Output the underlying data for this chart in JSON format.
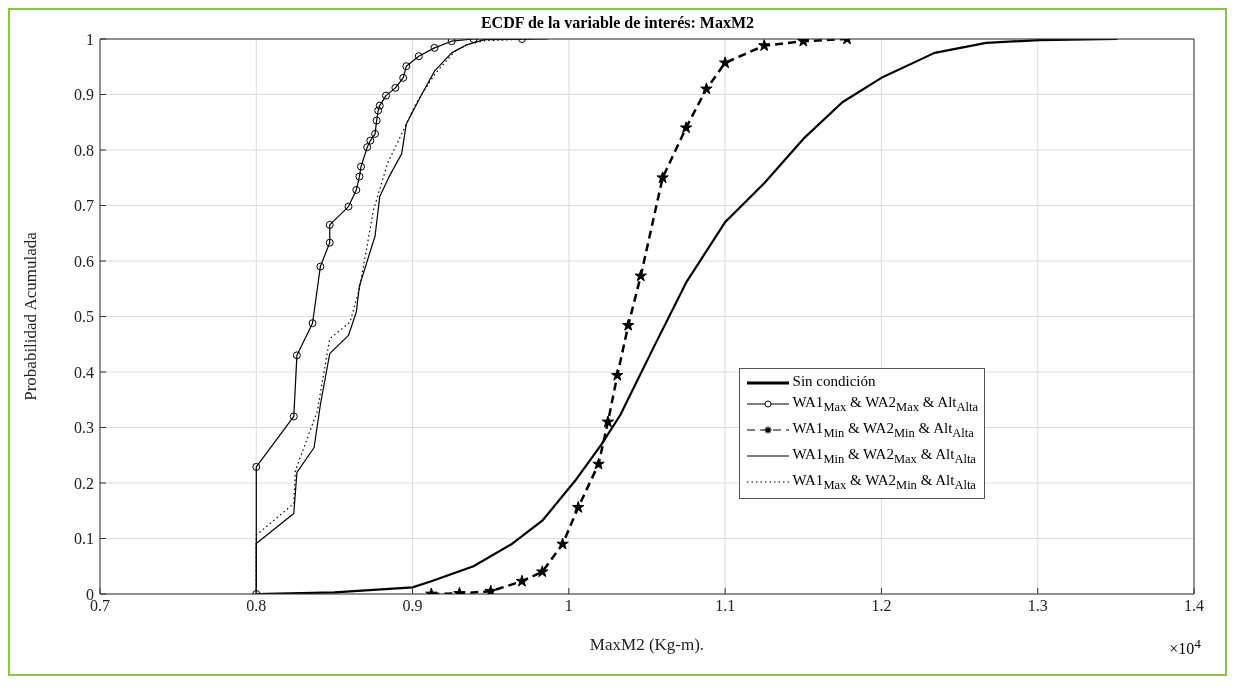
{
  "chart_data": {
    "type": "line",
    "title": "ECDF de la variable de interés: MaxM2",
    "xlabel": "MaxM2 (Kg-m).",
    "ylabel": "Probabilidad Acumulada",
    "annotations": [
      "×10$^{4}$"
    ],
    "xlim": [
      0.7,
      1.4
    ],
    "xticks": [
      0.7,
      0.8,
      0.9,
      1,
      1.1,
      1.2,
      1.3,
      1.4
    ],
    "ylim": [
      0,
      1
    ],
    "yticks": [
      0,
      0.1,
      0.2,
      0.3,
      0.4,
      0.5,
      0.6,
      0.7,
      0.8,
      0.9,
      1
    ],
    "grid": true,
    "legend": "right",
    "series": [
      {
        "name": "Sin condición",
        "color": "#000000",
        "marker": "none",
        "line_style": "solid",
        "x": [
          0.8,
          0.85,
          0.9,
          0.912,
          0.939,
          0.964,
          0.983,
          1.004,
          1.021,
          1.033,
          1.054,
          1.075,
          1.1,
          1.125,
          1.15,
          1.175,
          1.2,
          1.234,
          1.267,
          1.301,
          1.351
        ],
        "values": [
          0,
          0.003,
          0.012,
          0.023,
          0.05,
          0.091,
          0.132,
          0.204,
          0.27,
          0.323,
          0.443,
          0.561,
          0.67,
          0.74,
          0.82,
          0.886,
          0.93,
          0.975,
          0.993,
          0.998,
          1
        ]
      },
      {
        "name": "WA1$_{Max}$ & WA2$_{Max}$ & Alt$_{Alta}$",
        "color": "#000000",
        "marker": "circle",
        "line_style": "solid",
        "x": [
          0.8,
          0.8,
          0.824,
          0.826,
          0.836,
          0.841,
          0.847,
          0.847,
          0.859,
          0.864,
          0.866,
          0.867,
          0.871,
          0.873,
          0.876,
          0.877,
          0.878,
          0.879,
          0.883,
          0.889,
          0.894,
          0.896,
          0.904,
          0.914,
          0.925,
          0.939,
          0.97
        ],
        "values": [
          0,
          0.229,
          0.32,
          0.43,
          0.488,
          0.59,
          0.633,
          0.665,
          0.698,
          0.728,
          0.752,
          0.77,
          0.805,
          0.817,
          0.829,
          0.853,
          0.871,
          0.88,
          0.898,
          0.912,
          0.93,
          0.951,
          0.969,
          0.984,
          0.996,
          1,
          1
        ]
      },
      {
        "name": "WA1$_{Min}$ & WA2$_{Min}$ & Alt$_{Alta}$",
        "color": "#000000",
        "marker": "star",
        "line_style": "dashed",
        "x": [
          0.912,
          0.93,
          0.95,
          0.97,
          0.983,
          0.996,
          1.006,
          1.019,
          1.025,
          1.031,
          1.038,
          1.046,
          1.06,
          1.075,
          1.088,
          1.1,
          1.125,
          1.15,
          1.178
        ],
        "values": [
          0,
          0.001,
          0.005,
          0.023,
          0.04,
          0.09,
          0.156,
          0.234,
          0.31,
          0.394,
          0.484,
          0.573,
          0.75,
          0.84,
          0.91,
          0.957,
          0.988,
          0.996,
          1
        ]
      },
      {
        "name": "WA1$_{Min}$ & WA2$_{Max}$ & Alt$_{Alta}$",
        "color": "#000000",
        "marker": "none",
        "line_style": "solid",
        "x": [
          0.8,
          0.8,
          0.824,
          0.826,
          0.837,
          0.841,
          0.847,
          0.859,
          0.864,
          0.866,
          0.876,
          0.879,
          0.885,
          0.893,
          0.896,
          0.906,
          0.914,
          0.925,
          0.935,
          0.946,
          0.987
        ],
        "values": [
          0,
          0.091,
          0.145,
          0.219,
          0.264,
          0.341,
          0.433,
          0.466,
          0.508,
          0.555,
          0.645,
          0.716,
          0.752,
          0.793,
          0.847,
          0.901,
          0.942,
          0.975,
          0.99,
          0.999,
          1
        ]
      },
      {
        "name": "WA1$_{Max}$ & WA2$_{Min}$ & Alt$_{Alta}$",
        "color": "#000000",
        "marker": "none",
        "line_style": "dotted",
        "x": [
          0.8,
          0.8,
          0.824,
          0.825,
          0.839,
          0.847,
          0.86,
          0.866,
          0.875,
          0.884,
          0.893,
          0.902,
          0.914,
          0.927,
          0.935,
          0.946,
          0.975
        ],
        "values": [
          0,
          0.106,
          0.163,
          0.222,
          0.329,
          0.46,
          0.49,
          0.55,
          0.692,
          0.776,
          0.829,
          0.883,
          0.936,
          0.978,
          0.99,
          0.997,
          1
        ]
      }
    ]
  }
}
